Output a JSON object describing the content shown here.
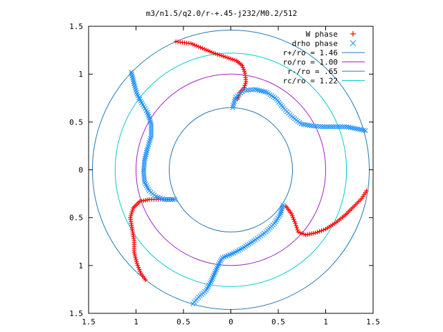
{
  "chart_data": {
    "type": "scatter",
    "title": "m3/n1.5/q2.0/r-+.45-j232/M0.2/512",
    "xlim": [
      -1.5,
      1.5
    ],
    "ylim": [
      -1.5,
      1.5
    ],
    "x_ticks": [
      -1.5,
      -1,
      -0.5,
      0,
      0.5,
      1,
      1.5
    ],
    "y_ticks": [
      -1.5,
      -1,
      -0.5,
      0,
      0.5,
      1,
      1.5
    ],
    "x_tick_labels": [
      "1.5",
      "1",
      "0.5",
      "0",
      "0.5",
      "1",
      "1.5"
    ],
    "y_tick_labels": [
      "1.5",
      "1",
      "0.5",
      "0",
      "0.5",
      "1",
      "1.5"
    ],
    "grid": false,
    "legend_position": "top-right",
    "legend": [
      {
        "label": "W phase",
        "marker": "+",
        "color": "#ff0000"
      },
      {
        "label": "drho phase",
        "marker": "x",
        "color": "#1e90ff"
      },
      {
        "label": "r+/ro = 1.46",
        "line": true,
        "color": "#1f77b4"
      },
      {
        "label": "ro/ro = 1.00",
        "line": true,
        "color": "#a020c0"
      },
      {
        "label": "r-/ro = .65",
        "line": true,
        "color": "#1f77b4"
      },
      {
        "label": "rc/ro = 1.22",
        "line": true,
        "color": "#00cccc"
      }
    ],
    "circles": [
      {
        "r": 1.46,
        "color": "#1f77b4"
      },
      {
        "r": 1.0,
        "color": "#a020c0"
      },
      {
        "r": 0.65,
        "color": "#1f77b4"
      },
      {
        "r": 1.22,
        "color": "#00cccc"
      }
    ],
    "series": [
      {
        "name": "W phase",
        "color": "#ff0000",
        "marker": "+",
        "arms": [
          [
            [
              -0.58,
              1.34
            ],
            [
              -0.42,
              1.32
            ],
            [
              -0.3,
              1.27
            ],
            [
              -0.18,
              1.22
            ],
            [
              -0.06,
              1.18
            ],
            [
              0.06,
              1.14
            ],
            [
              0.12,
              1.09
            ],
            [
              0.15,
              1.01
            ],
            [
              0.16,
              0.92
            ],
            [
              0.14,
              0.86
            ],
            [
              0.1,
              0.81
            ],
            [
              0.07,
              0.74
            ]
          ],
          [
            [
              1.43,
              -0.22
            ],
            [
              1.38,
              -0.3
            ],
            [
              1.3,
              -0.38
            ],
            [
              1.21,
              -0.47
            ],
            [
              1.11,
              -0.55
            ],
            [
              1.0,
              -0.62
            ],
            [
              0.89,
              -0.66
            ],
            [
              0.79,
              -0.68
            ],
            [
              0.71,
              -0.65
            ],
            [
              0.68,
              -0.56
            ],
            [
              0.64,
              -0.46
            ],
            [
              0.58,
              -0.38
            ]
          ],
          [
            [
              -0.9,
              -1.15
            ],
            [
              -0.95,
              -1.08
            ],
            [
              -0.99,
              -0.98
            ],
            [
              -1.02,
              -0.86
            ],
            [
              -1.02,
              -0.74
            ],
            [
              -1.04,
              -0.62
            ],
            [
              -1.06,
              -0.5
            ],
            [
              -1.03,
              -0.4
            ],
            [
              -0.96,
              -0.33
            ],
            [
              -0.86,
              -0.31
            ],
            [
              -0.74,
              -0.31
            ],
            [
              -0.62,
              -0.31
            ]
          ]
        ]
      },
      {
        "name": "drho phase",
        "color": "#1e90ff",
        "marker": "x",
        "arms": [
          [
            [
              0.02,
              0.65
            ],
            [
              0.05,
              0.76
            ],
            [
              0.14,
              0.83
            ],
            [
              0.26,
              0.84
            ],
            [
              0.38,
              0.81
            ],
            [
              0.48,
              0.74
            ],
            [
              0.56,
              0.64
            ],
            [
              0.64,
              0.56
            ],
            [
              0.74,
              0.48
            ],
            [
              0.85,
              0.46
            ],
            [
              0.97,
              0.45
            ],
            [
              1.08,
              0.45
            ],
            [
              1.22,
              0.45
            ],
            [
              1.32,
              0.43
            ],
            [
              1.42,
              0.41
            ]
          ],
          [
            [
              0.55,
              -0.37
            ],
            [
              0.52,
              -0.47
            ],
            [
              0.46,
              -0.56
            ],
            [
              0.37,
              -0.65
            ],
            [
              0.26,
              -0.73
            ],
            [
              0.14,
              -0.81
            ],
            [
              0.03,
              -0.87
            ],
            [
              -0.09,
              -0.92
            ],
            [
              -0.13,
              -0.99
            ],
            [
              -0.17,
              -1.08
            ],
            [
              -0.21,
              -1.17
            ],
            [
              -0.26,
              -1.26
            ],
            [
              -0.34,
              -1.33
            ],
            [
              -0.4,
              -1.4
            ]
          ],
          [
            [
              -0.59,
              -0.31
            ],
            [
              -0.7,
              -0.31
            ],
            [
              -0.79,
              -0.28
            ],
            [
              -0.86,
              -0.22
            ],
            [
              -0.91,
              -0.13
            ],
            [
              -0.92,
              -0.02
            ],
            [
              -0.91,
              0.1
            ],
            [
              -0.88,
              0.22
            ],
            [
              -0.84,
              0.35
            ],
            [
              -0.84,
              0.48
            ],
            [
              -0.88,
              0.6
            ],
            [
              -0.94,
              0.7
            ],
            [
              -0.99,
              0.79
            ],
            [
              -1.02,
              0.9
            ],
            [
              -1.05,
              1.02
            ]
          ]
        ]
      }
    ]
  }
}
